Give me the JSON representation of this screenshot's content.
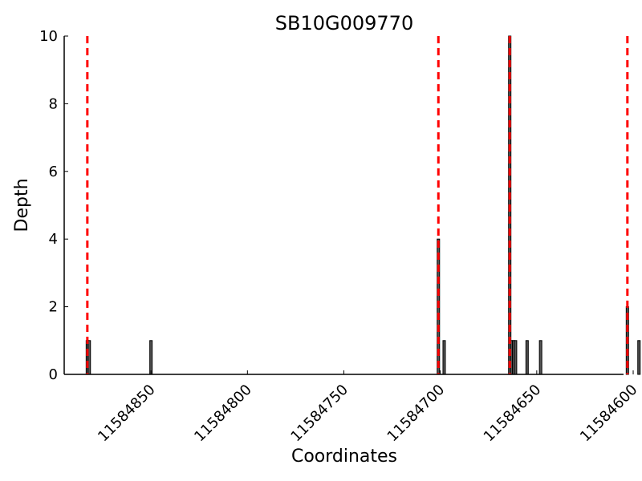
{
  "chart_data": {
    "type": "bar",
    "title": "SB10G009770",
    "xlabel": "Coordinates",
    "ylabel": "Depth",
    "xlim": [
      11584895,
      11584605
    ],
    "ylim": [
      0,
      10
    ],
    "x_reversed": true,
    "x_ticks": [
      11584850,
      11584800,
      11584750,
      11584700,
      11584650,
      11584600
    ],
    "y_ticks": [
      0,
      2,
      4,
      6,
      8,
      10
    ],
    "grid": false,
    "legend": "none",
    "bars": [
      {
        "x": 11584883,
        "value": 1
      },
      {
        "x": 11584882,
        "value": 1
      },
      {
        "x": 11584850,
        "value": 1
      },
      {
        "x": 11584701,
        "value": 4
      },
      {
        "x": 11584698,
        "value": 1
      },
      {
        "x": 11584664,
        "value": 10
      },
      {
        "x": 11584663,
        "value": 1
      },
      {
        "x": 11584662,
        "value": 1
      },
      {
        "x": 11584661,
        "value": 1
      },
      {
        "x": 11584655,
        "value": 1
      },
      {
        "x": 11584648,
        "value": 1
      },
      {
        "x": 11584603,
        "value": 2
      },
      {
        "x": 11584597,
        "value": 1
      }
    ],
    "reference_lines": [
      11584883,
      11584701,
      11584664,
      11584603
    ],
    "colors": {
      "bar_fill": "#555555",
      "bar_edge": "#000000",
      "reference_line": "#ff0000",
      "axis": "#000000"
    }
  }
}
